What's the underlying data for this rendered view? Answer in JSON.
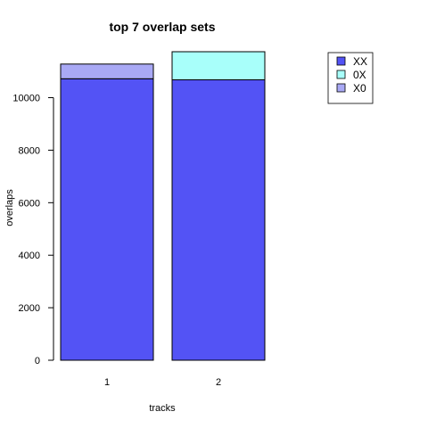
{
  "chart_data": {
    "type": "bar",
    "stacked": true,
    "title": "top 7 overlap sets",
    "xlabel": "tracks",
    "ylabel": "overlaps",
    "categories": [
      "1",
      "2"
    ],
    "series": [
      {
        "name": "XX",
        "values": [
          10720,
          10680
        ],
        "color": "#5353f5"
      },
      {
        "name": "0X",
        "values": [
          0,
          1070
        ],
        "color": "#a8fffa"
      },
      {
        "name": "X0",
        "values": [
          560,
          0
        ],
        "color": "#a9a9f5"
      }
    ],
    "yticks": [
      0,
      2000,
      4000,
      6000,
      8000,
      10000
    ],
    "ylim": [
      0,
      11750
    ],
    "legend": "top-right",
    "grid": false
  }
}
